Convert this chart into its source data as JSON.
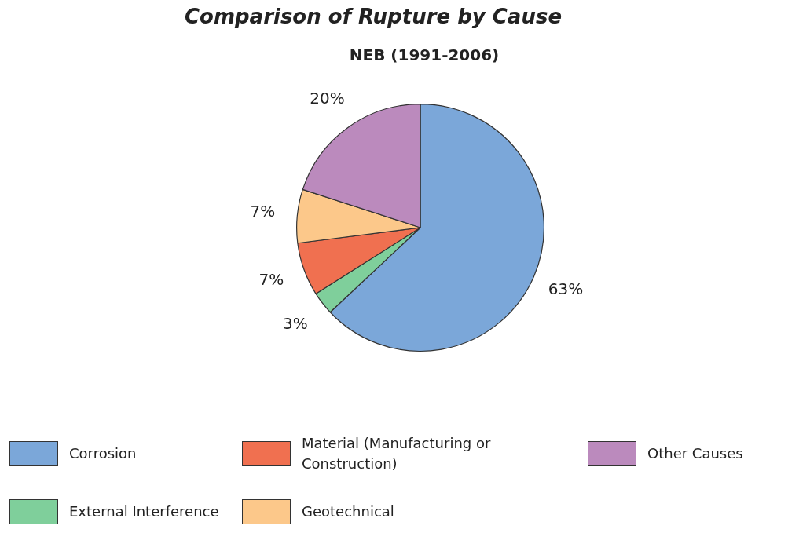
{
  "chart_data": {
    "type": "pie",
    "title": "Comparison of Rupture by Cause",
    "subtitle": "NEB (1991-2006)",
    "categories": [
      "Corrosion",
      "External Interference",
      "Material (Manufacturing or Construction)",
      "Geotechnical",
      "Other Causes"
    ],
    "values": [
      63,
      3,
      7,
      7,
      20
    ],
    "colors": [
      "#7ba7d9",
      "#7fcf9b",
      "#f07050",
      "#fcc88a",
      "#bb8abd"
    ],
    "value_labels": [
      "63%",
      "3%",
      "7%",
      "7%",
      "20%"
    ],
    "legend": "bottom"
  }
}
